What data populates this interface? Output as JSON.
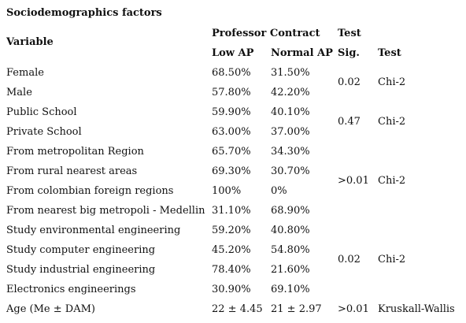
{
  "table": {
    "title": "Sociodemographics factors",
    "headers": {
      "variable": "Variable",
      "professor_contract": "Professor Contract",
      "test_group": "Test",
      "low_ap": "Low AP",
      "normal_ap": "Normal AP",
      "sig": "Sig.",
      "test": "Test"
    },
    "rows": [
      {
        "variable": "Female",
        "low_ap": "68.50%",
        "normal_ap": "31.50%"
      },
      {
        "variable": "Male",
        "low_ap": "57.80%",
        "normal_ap": "42.20%"
      },
      {
        "variable": "Public School",
        "low_ap": "59.90%",
        "normal_ap": "40.10%"
      },
      {
        "variable": "Private School",
        "low_ap": "63.00%",
        "normal_ap": "37.00%"
      },
      {
        "variable": "From metropolitan Region",
        "low_ap": "65.70%",
        "normal_ap": "34.30%"
      },
      {
        "variable": "From rural nearest areas",
        "low_ap": "69.30%",
        "normal_ap": "30.70%"
      },
      {
        "variable": "From colombian foreign regions",
        "low_ap": "100%",
        "normal_ap": "0%"
      },
      {
        "variable": "From nearest big metropoli - Medellin",
        "low_ap": "31.10%",
        "normal_ap": "68.90%"
      },
      {
        "variable": "Study environmental engineering",
        "low_ap": "59.20%",
        "normal_ap": "40.80%"
      },
      {
        "variable": "Study computer engineering",
        "low_ap": "45.20%",
        "normal_ap": "54.80%"
      },
      {
        "variable": "Study industrial engineering",
        "low_ap": "78.40%",
        "normal_ap": "21.60%"
      },
      {
        "variable": "Electronics engineerings",
        "low_ap": "30.90%",
        "normal_ap": "69.10%"
      },
      {
        "variable": "Age (Me ± DAM)",
        "low_ap": "22 ± 4.45",
        "normal_ap": "21 ± 2.97"
      }
    ],
    "groups": [
      {
        "sig": "0.02",
        "test": "Chi-2"
      },
      {
        "sig": "0.47",
        "test": "Chi-2"
      },
      {
        "sig": ">0.01",
        "test": "Chi-2"
      },
      {
        "sig": "0.02",
        "test": "Chi-2"
      },
      {
        "sig": ">0.01",
        "test": "Kruskall-Wallis"
      }
    ]
  }
}
